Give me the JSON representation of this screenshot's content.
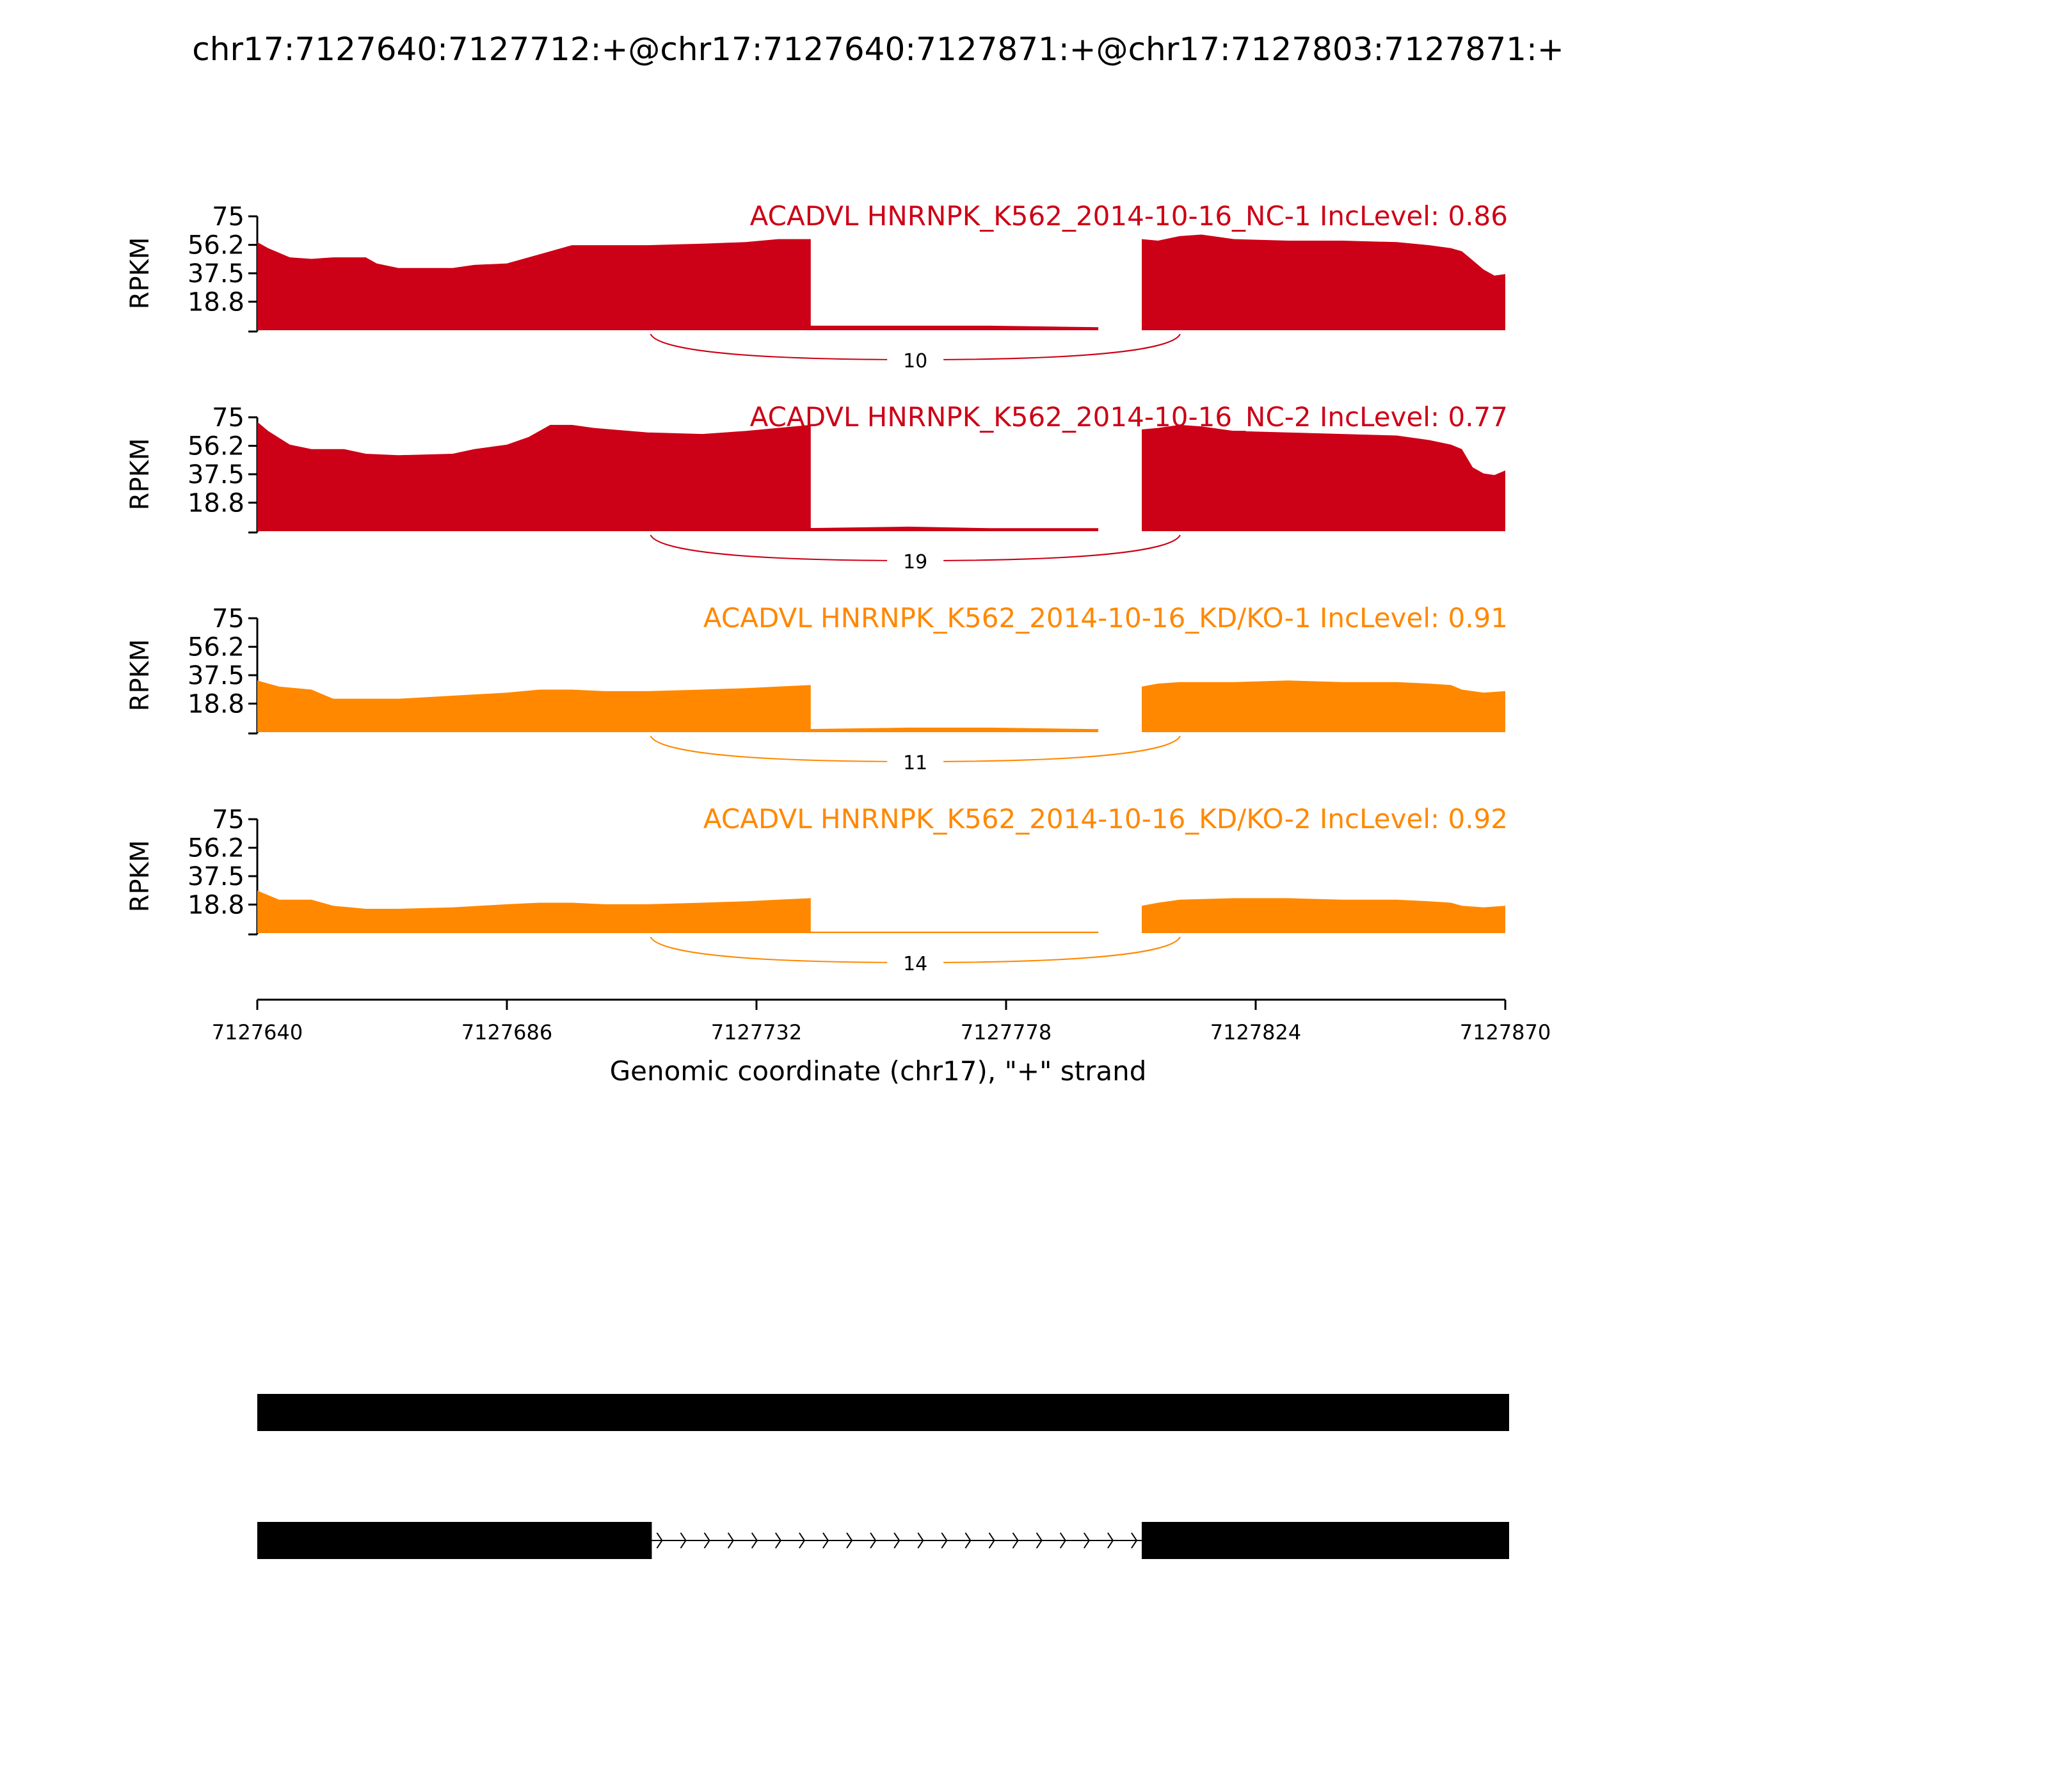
{
  "chart_data": {
    "type": "area",
    "title": "chr17:7127640:7127712:+@chr17:7127640:7127871:+@chr17:7127803:7127871:+",
    "xlabel": "Genomic coordinate (chr17), \"+\" strand",
    "xlim": [
      7127640,
      7127870
    ],
    "xticks": [
      7127640,
      7127686,
      7127732,
      7127778,
      7127824,
      7127870
    ],
    "ylabel": "RPKM",
    "ylim": [
      0,
      75
    ],
    "yticks": [
      "75",
      "56.2",
      "37.5",
      "18.8"
    ],
    "colors": {
      "NC": "#cc0016",
      "KD": "#ff8800"
    },
    "exon_ranges": [
      [
        7127640,
        7127712
      ],
      [
        7127726,
        7127797
      ],
      [
        7127803,
        7127870
      ]
    ],
    "junction": {
      "from": 7127712,
      "to": 7127803
    },
    "series": [
      {
        "label": "ACADVL HNRNPK_K562_2014-10-16_NC-1 IncLevel: 0.86",
        "color": "#cc0016",
        "junction_count": "10",
        "exon1": [
          [
            7127640,
            58
          ],
          [
            7127642,
            54
          ],
          [
            7127646,
            48
          ],
          [
            7127650,
            47
          ],
          [
            7127654,
            48
          ],
          [
            7127660,
            48
          ],
          [
            7127662,
            44
          ],
          [
            7127666,
            41
          ],
          [
            7127676,
            41
          ],
          [
            7127680,
            43
          ],
          [
            7127686,
            44
          ],
          [
            7127690,
            48
          ],
          [
            7127694,
            52
          ],
          [
            7127698,
            56
          ],
          [
            7127704,
            56
          ],
          [
            7127712,
            56
          ],
          [
            7127722,
            57
          ],
          [
            7127730,
            58
          ],
          [
            7127736,
            60
          ],
          [
            7127742,
            60
          ]
        ],
        "valley": [
          [
            7127727,
            2
          ],
          [
            7127740,
            3
          ],
          [
            7127760,
            3
          ],
          [
            7127775,
            3
          ],
          [
            7127795,
            2
          ]
        ],
        "exon2": [
          [
            7127803,
            60
          ],
          [
            7127806,
            59
          ],
          [
            7127810,
            62
          ],
          [
            7127814,
            63
          ],
          [
            7127820,
            60
          ],
          [
            7127830,
            59
          ],
          [
            7127840,
            59
          ],
          [
            7127850,
            58
          ],
          [
            7127856,
            56
          ],
          [
            7127860,
            54
          ],
          [
            7127862,
            52
          ],
          [
            7127864,
            46
          ],
          [
            7127866,
            40
          ],
          [
            7127868,
            36
          ],
          [
            7127870,
            37
          ]
        ]
      },
      {
        "label": "ACADVL HNRNPK_K562_2014-10-16_NC-2 IncLevel: 0.77",
        "color": "#cc0016",
        "junction_count": "19",
        "exon1": [
          [
            7127640,
            72
          ],
          [
            7127642,
            66
          ],
          [
            7127646,
            57
          ],
          [
            7127650,
            54
          ],
          [
            7127656,
            54
          ],
          [
            7127660,
            51
          ],
          [
            7127666,
            50
          ],
          [
            7127676,
            51
          ],
          [
            7127680,
            54
          ],
          [
            7127686,
            57
          ],
          [
            7127690,
            62
          ],
          [
            7127694,
            70
          ],
          [
            7127698,
            70
          ],
          [
            7127702,
            68
          ],
          [
            7127712,
            65
          ],
          [
            7127722,
            64
          ],
          [
            7127730,
            66
          ],
          [
            7127736,
            68
          ],
          [
            7127742,
            70
          ]
        ],
        "valley": [
          [
            7127727,
            2
          ],
          [
            7127740,
            2
          ],
          [
            7127760,
            3
          ],
          [
            7127775,
            2
          ],
          [
            7127795,
            2
          ]
        ],
        "exon2": [
          [
            7127803,
            67
          ],
          [
            7127806,
            68
          ],
          [
            7127810,
            70
          ],
          [
            7127814,
            69
          ],
          [
            7127820,
            66
          ],
          [
            7127830,
            65
          ],
          [
            7127840,
            64
          ],
          [
            7127850,
            63
          ],
          [
            7127856,
            60
          ],
          [
            7127860,
            57
          ],
          [
            7127862,
            54
          ],
          [
            7127864,
            42
          ],
          [
            7127866,
            38
          ],
          [
            7127868,
            37
          ],
          [
            7127870,
            40
          ]
        ]
      },
      {
        "label": "ACADVL HNRNPK_K562_2014-10-16_KD/KO-1 IncLevel: 0.91",
        "color": "#ff8800",
        "junction_count": "11",
        "exon1": [
          [
            7127640,
            34
          ],
          [
            7127644,
            30
          ],
          [
            7127650,
            28
          ],
          [
            7127654,
            22
          ],
          [
            7127660,
            22
          ],
          [
            7127666,
            22
          ],
          [
            7127676,
            24
          ],
          [
            7127686,
            26
          ],
          [
            7127692,
            28
          ],
          [
            7127698,
            28
          ],
          [
            7127704,
            27
          ],
          [
            7127712,
            27
          ],
          [
            7127722,
            28
          ],
          [
            7127730,
            29
          ],
          [
            7127736,
            30
          ],
          [
            7127742,
            31
          ]
        ],
        "valley": [
          [
            7127727,
            2
          ],
          [
            7127740,
            2
          ],
          [
            7127760,
            3
          ],
          [
            7127775,
            3
          ],
          [
            7127795,
            2
          ]
        ],
        "exon2": [
          [
            7127803,
            30
          ],
          [
            7127806,
            32
          ],
          [
            7127810,
            33
          ],
          [
            7127820,
            33
          ],
          [
            7127830,
            34
          ],
          [
            7127840,
            33
          ],
          [
            7127850,
            33
          ],
          [
            7127856,
            32
          ],
          [
            7127860,
            31
          ],
          [
            7127862,
            28
          ],
          [
            7127866,
            26
          ],
          [
            7127870,
            27
          ]
        ]
      },
      {
        "label": "ACADVL HNRNPK_K562_2014-10-16_KD/KO-2 IncLevel: 0.92",
        "color": "#ff8800",
        "junction_count": "14",
        "exon1": [
          [
            7127640,
            28
          ],
          [
            7127644,
            22
          ],
          [
            7127650,
            22
          ],
          [
            7127654,
            18
          ],
          [
            7127660,
            16
          ],
          [
            7127666,
            16
          ],
          [
            7127676,
            17
          ],
          [
            7127686,
            19
          ],
          [
            7127692,
            20
          ],
          [
            7127698,
            20
          ],
          [
            7127704,
            19
          ],
          [
            7127712,
            19
          ],
          [
            7127722,
            20
          ],
          [
            7127730,
            21
          ],
          [
            7127736,
            22
          ],
          [
            7127742,
            23
          ]
        ],
        "valley": [
          [
            7127727,
            1
          ],
          [
            7127740,
            1
          ],
          [
            7127760,
            1
          ],
          [
            7127775,
            1
          ],
          [
            7127795,
            1
          ]
        ],
        "exon2": [
          [
            7127803,
            18
          ],
          [
            7127806,
            20
          ],
          [
            7127810,
            22
          ],
          [
            7127820,
            23
          ],
          [
            7127830,
            23
          ],
          [
            7127840,
            22
          ],
          [
            7127850,
            22
          ],
          [
            7127856,
            21
          ],
          [
            7127860,
            20
          ],
          [
            7127862,
            18
          ],
          [
            7127866,
            17
          ],
          [
            7127870,
            18
          ]
        ]
      }
    ],
    "isoforms": [
      {
        "segments": [
          [
            7127640,
            7127870
          ]
        ],
        "intron": null
      },
      {
        "segments": [
          [
            7127640,
            7127712
          ],
          [
            7127803,
            7127870
          ]
        ],
        "intron": [
          7127712,
          7127803
        ]
      }
    ]
  }
}
